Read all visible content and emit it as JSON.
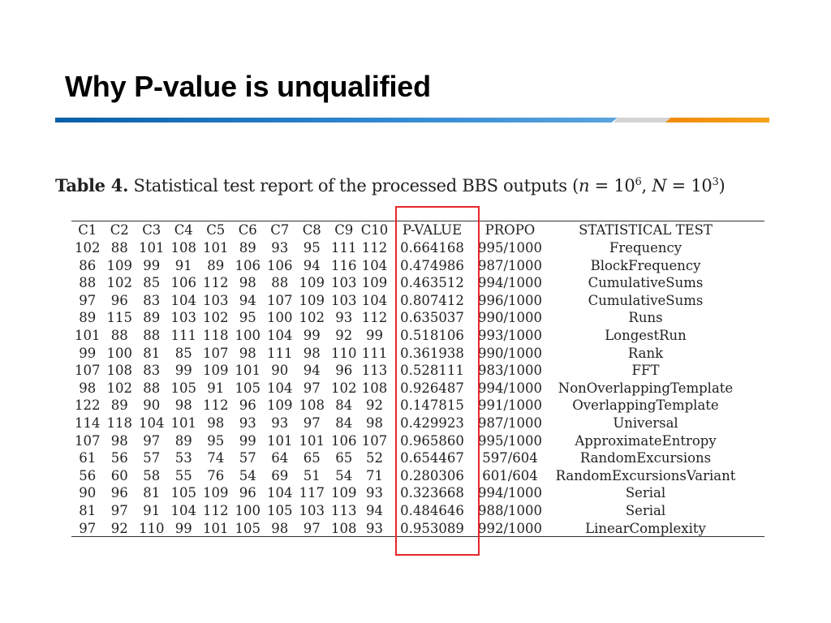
{
  "slide": {
    "title": "Why P-value is unqualified"
  },
  "caption": {
    "label": "Table 4.",
    "text": "Statistical test report of the processed BBS outputs",
    "open": "(",
    "n_var": "n",
    "eq1": " = 10",
    "n_exp": "6",
    "sep": ", ",
    "N_var": "N",
    "eq2": " = 10",
    "N_exp": "3",
    "close": ")"
  },
  "table": {
    "headers": [
      "C1",
      "C2",
      "C3",
      "C4",
      "C5",
      "C6",
      "C7",
      "C8",
      "C9",
      "C10",
      "P-VALUE",
      "PROPO",
      "STATISTICAL TEST"
    ],
    "rows": [
      [
        "102",
        "88",
        "101",
        "108",
        "101",
        "89",
        "93",
        "95",
        "111",
        "112",
        "0.664168",
        "995/1000",
        "Frequency"
      ],
      [
        "86",
        "109",
        "99",
        "91",
        "89",
        "106",
        "106",
        "94",
        "116",
        "104",
        "0.474986",
        "987/1000",
        "BlockFrequency"
      ],
      [
        "88",
        "102",
        "85",
        "106",
        "112",
        "98",
        "88",
        "109",
        "103",
        "109",
        "0.463512",
        "994/1000",
        "CumulativeSums"
      ],
      [
        "97",
        "96",
        "83",
        "104",
        "103",
        "94",
        "107",
        "109",
        "103",
        "104",
        "0.807412",
        "996/1000",
        "CumulativeSums"
      ],
      [
        "89",
        "115",
        "89",
        "103",
        "102",
        "95",
        "100",
        "102",
        "93",
        "112",
        "0.635037",
        "990/1000",
        "Runs"
      ],
      [
        "101",
        "88",
        "88",
        "111",
        "118",
        "100",
        "104",
        "99",
        "92",
        "99",
        "0.518106",
        "993/1000",
        "LongestRun"
      ],
      [
        "99",
        "100",
        "81",
        "85",
        "107",
        "98",
        "111",
        "98",
        "110",
        "111",
        "0.361938",
        "990/1000",
        "Rank"
      ],
      [
        "107",
        "108",
        "83",
        "99",
        "109",
        "101",
        "90",
        "94",
        "96",
        "113",
        "0.528111",
        "983/1000",
        "FFT"
      ],
      [
        "98",
        "102",
        "88",
        "105",
        "91",
        "105",
        "104",
        "97",
        "102",
        "108",
        "0.926487",
        "994/1000",
        "NonOverlappingTemplate"
      ],
      [
        "122",
        "89",
        "90",
        "98",
        "112",
        "96",
        "109",
        "108",
        "84",
        "92",
        "0.147815",
        "991/1000",
        "OverlappingTemplate"
      ],
      [
        "114",
        "118",
        "104",
        "101",
        "98",
        "93",
        "93",
        "97",
        "84",
        "98",
        "0.429923",
        "987/1000",
        "Universal"
      ],
      [
        "107",
        "98",
        "97",
        "89",
        "95",
        "99",
        "101",
        "101",
        "106",
        "107",
        "0.965860",
        "995/1000",
        "ApproximateEntropy"
      ],
      [
        "61",
        "56",
        "57",
        "53",
        "74",
        "57",
        "64",
        "65",
        "65",
        "52",
        "0.654467",
        "597/604",
        "RandomExcursions"
      ],
      [
        "56",
        "60",
        "58",
        "55",
        "76",
        "54",
        "69",
        "51",
        "54",
        "71",
        "0.280306",
        "601/604",
        "RandomExcursionsVariant"
      ],
      [
        "90",
        "96",
        "81",
        "105",
        "109",
        "96",
        "104",
        "117",
        "109",
        "93",
        "0.323668",
        "994/1000",
        "Serial"
      ],
      [
        "81",
        "97",
        "91",
        "104",
        "112",
        "100",
        "105",
        "103",
        "113",
        "94",
        "0.484646",
        "988/1000",
        "Serial"
      ],
      [
        "97",
        "92",
        "110",
        "99",
        "101",
        "105",
        "98",
        "97",
        "108",
        "93",
        "0.953089",
        "992/1000",
        "LinearComplexity"
      ]
    ]
  },
  "colors": {
    "highlight_border": "#e8262a",
    "rule_blue": "#1f78c4",
    "rule_gray": "#d4d4d4",
    "rule_orange": "#f39314"
  }
}
